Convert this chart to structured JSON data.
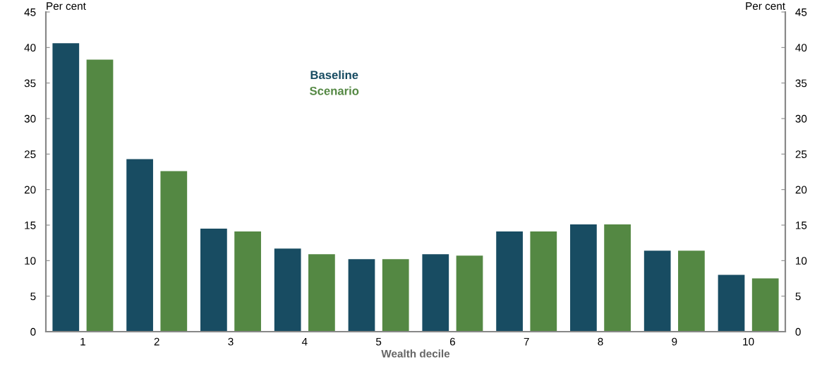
{
  "chart_data": {
    "type": "bar",
    "xlabel": "Wealth decile",
    "ylabel": "Per cent",
    "y2label": "Per cent",
    "categories": [
      "1",
      "2",
      "3",
      "4",
      "5",
      "6",
      "7",
      "8",
      "9",
      "10"
    ],
    "series": [
      {
        "name": "Baseline",
        "color": "#184c62",
        "values": [
          40.6,
          24.3,
          14.5,
          11.7,
          10.2,
          10.9,
          14.1,
          15.1,
          11.4,
          8.0
        ]
      },
      {
        "name": "Scenario",
        "color": "#548843",
        "values": [
          38.3,
          22.6,
          14.1,
          10.9,
          10.2,
          10.7,
          14.1,
          15.1,
          11.4,
          7.5
        ]
      }
    ],
    "ylim": [
      0,
      45
    ],
    "yticks": [
      0,
      5,
      10,
      15,
      20,
      25,
      30,
      35,
      40,
      45
    ],
    "y2lim": [
      0,
      45
    ],
    "y2ticks": [
      0,
      5,
      10,
      15,
      20,
      25,
      30,
      35,
      40,
      45
    ],
    "grid": false,
    "legend": "top"
  }
}
